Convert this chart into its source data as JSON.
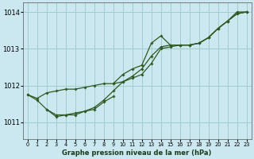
{
  "title": "Graphe pression niveau de la mer (hPa)",
  "bg_color": "#cbe8f0",
  "grid_color": "#9ecfcc",
  "line_color": "#2d5a1e",
  "xlim": [
    -0.5,
    23.5
  ],
  "ylim": [
    1010.55,
    1014.25
  ],
  "yticks": [
    1011,
    1012,
    1013,
    1014
  ],
  "xticks": [
    0,
    1,
    2,
    3,
    4,
    5,
    6,
    7,
    8,
    9,
    10,
    11,
    12,
    13,
    14,
    15,
    16,
    17,
    18,
    19,
    20,
    21,
    22,
    23
  ],
  "line_A": {
    "x": [
      0,
      1,
      2,
      3,
      4,
      5,
      6,
      7,
      8,
      9,
      10,
      11,
      12,
      13,
      14,
      15,
      16,
      17,
      18,
      19,
      20,
      21,
      22,
      23
    ],
    "y": [
      1011.75,
      1011.65,
      1011.8,
      1011.85,
      1011.9,
      1011.9,
      1011.95,
      1012.0,
      1012.05,
      1012.05,
      1012.1,
      1012.2,
      1012.3,
      1012.6,
      1013.0,
      1013.05,
      1013.1,
      1013.1,
      1013.15,
      1013.3,
      1013.55,
      1013.75,
      1014.0,
      1014.0
    ]
  },
  "line_B": {
    "x": [
      9,
      10,
      11,
      12,
      13,
      14,
      15,
      16,
      17,
      18,
      19,
      20,
      21,
      22,
      23
    ],
    "y": [
      1012.05,
      1012.3,
      1012.45,
      1012.55,
      1013.15,
      1013.35,
      1013.1,
      1013.1,
      1013.1,
      1013.15,
      1013.3,
      1013.55,
      1013.75,
      1013.95,
      1014.0
    ]
  },
  "line_C": {
    "x": [
      0,
      1,
      2,
      3,
      4,
      5,
      6,
      7,
      8,
      9,
      10,
      11,
      12,
      13,
      14,
      15,
      16,
      17,
      18,
      19,
      20,
      21,
      22,
      23
    ],
    "y": [
      1011.75,
      1011.6,
      1011.35,
      1011.2,
      1011.2,
      1011.25,
      1011.3,
      1011.4,
      1011.6,
      1011.85,
      1012.1,
      1012.25,
      1012.45,
      1012.8,
      1013.05,
      1013.1,
      1013.1,
      1013.1,
      1013.15,
      1013.3,
      1013.55,
      1013.75,
      1013.95,
      1014.0
    ]
  },
  "line_D": {
    "x": [
      2,
      3,
      4,
      5,
      6,
      7,
      8,
      9
    ],
    "y": [
      1011.35,
      1011.15,
      1011.2,
      1011.2,
      1011.3,
      1011.35,
      1011.55,
      1011.7
    ]
  },
  "line_E": {
    "x": [
      7,
      8,
      9
    ],
    "y": [
      1011.65,
      1011.7,
      1011.75
    ]
  }
}
